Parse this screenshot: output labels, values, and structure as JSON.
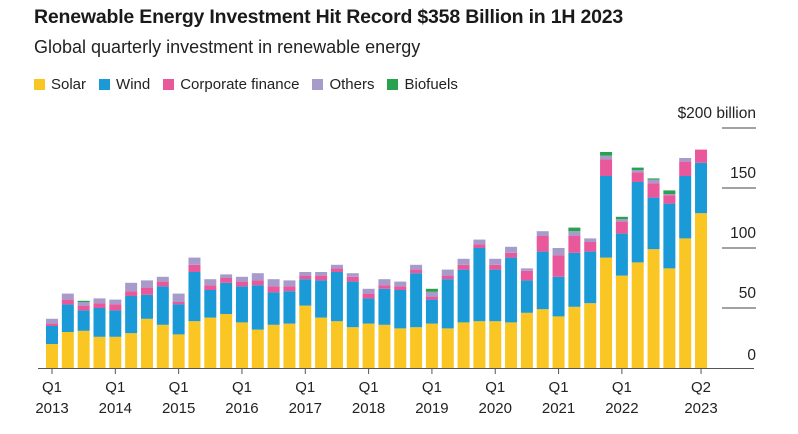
{
  "chart_data": {
    "type": "bar",
    "stacked": true,
    "title": "Renewable Energy Investment Hit Record $358 Billion in 1H 2023",
    "subtitle": "Global quarterly investment in renewable energy",
    "xlabel": "",
    "ylabel": "",
    "ylim": [
      0,
      200
    ],
    "y_unit_label": "$200 billion",
    "y_ticks": [
      0,
      50,
      100,
      150,
      200
    ],
    "y_tick_labels": [
      "0",
      "50",
      "100",
      "150",
      "$200 billion"
    ],
    "grid": false,
    "legend_position": "top-left",
    "categories": [
      "Q1 2013",
      "Q2 2013",
      "Q3 2013",
      "Q4 2013",
      "Q1 2014",
      "Q2 2014",
      "Q3 2014",
      "Q4 2014",
      "Q1 2015",
      "Q2 2015",
      "Q3 2015",
      "Q4 2015",
      "Q1 2016",
      "Q2 2016",
      "Q3 2016",
      "Q4 2016",
      "Q1 2017",
      "Q2 2017",
      "Q3 2017",
      "Q4 2017",
      "Q1 2018",
      "Q2 2018",
      "Q3 2018",
      "Q4 2018",
      "Q1 2019",
      "Q2 2019",
      "Q3 2019",
      "Q4 2019",
      "Q1 2020",
      "Q2 2020",
      "Q3 2020",
      "Q4 2020",
      "Q1 2021",
      "Q2 2021",
      "Q3 2021",
      "Q4 2021",
      "Q1 2022",
      "Q2 2022",
      "Q3 2022",
      "Q4 2022",
      "Q1 2023",
      "Q2 2023"
    ],
    "x_tick_labels": [
      {
        "index": 0,
        "line1": "Q1",
        "line2": "2013"
      },
      {
        "index": 4,
        "line1": "Q1",
        "line2": "2014"
      },
      {
        "index": 8,
        "line1": "Q1",
        "line2": "2015"
      },
      {
        "index": 12,
        "line1": "Q1",
        "line2": "2016"
      },
      {
        "index": 16,
        "line1": "Q1",
        "line2": "2017"
      },
      {
        "index": 20,
        "line1": "Q1",
        "line2": "2018"
      },
      {
        "index": 24,
        "line1": "Q1",
        "line2": "2019"
      },
      {
        "index": 28,
        "line1": "Q1",
        "line2": "2020"
      },
      {
        "index": 32,
        "line1": "Q1",
        "line2": "2021"
      },
      {
        "index": 36,
        "line1": "Q1",
        "line2": "2022"
      },
      {
        "index": 41,
        "line1": "Q2",
        "line2": "2023"
      }
    ],
    "series": [
      {
        "name": "Solar",
        "color": "#F9C623",
        "values": [
          20,
          30,
          31,
          26,
          26,
          29,
          41,
          36,
          28,
          39,
          42,
          45,
          38,
          32,
          36,
          37,
          52,
          42,
          39,
          34,
          37,
          36,
          33,
          34,
          37,
          33,
          38,
          39,
          39,
          38,
          46,
          49,
          43,
          51,
          54,
          92,
          77,
          88,
          99,
          83,
          108,
          129
        ]
      },
      {
        "name": "Wind",
        "color": "#1A9BD7",
        "values": [
          15,
          23,
          17,
          24,
          22,
          31,
          20,
          32,
          25,
          41,
          23,
          26,
          30,
          37,
          27,
          27,
          22,
          31,
          41,
          38,
          21,
          30,
          32,
          45,
          20,
          41,
          44,
          61,
          43,
          54,
          27,
          48,
          33,
          45,
          43,
          68,
          35,
          67,
          43,
          54,
          52,
          42
        ]
      },
      {
        "name": "Corporate finance",
        "color": "#E8589A",
        "values": [
          2,
          4,
          4,
          4,
          5,
          4,
          6,
          4,
          2,
          6,
          4,
          4,
          4,
          4,
          5,
          4,
          3,
          4,
          3,
          4,
          4,
          3,
          3,
          3,
          2.5,
          3,
          4,
          3,
          4,
          4,
          8,
          13,
          18,
          14,
          8,
          14,
          10,
          8,
          12,
          7,
          12,
          11
        ]
      },
      {
        "name": "Others",
        "color": "#A79BCB",
        "values": [
          4,
          5,
          3,
          4,
          4,
          7,
          6,
          4,
          7,
          6,
          5,
          3,
          4,
          6,
          6,
          5,
          3,
          3,
          3,
          3,
          4,
          5,
          4,
          4,
          4,
          5,
          5,
          4,
          5,
          5,
          2,
          4,
          6,
          4,
          3,
          3,
          2,
          2,
          3,
          1,
          3,
          0
        ]
      },
      {
        "name": "Biofuels",
        "color": "#27A350",
        "values": [
          0,
          0,
          1,
          0,
          0,
          0,
          0,
          0,
          0,
          0,
          0,
          0,
          0,
          0,
          0,
          0,
          0,
          0,
          0,
          0,
          0,
          0,
          0,
          0,
          2.5,
          0,
          0,
          0,
          0,
          0,
          0,
          0,
          0,
          3,
          0,
          3,
          2,
          2,
          1,
          3,
          0,
          0
        ]
      }
    ]
  }
}
